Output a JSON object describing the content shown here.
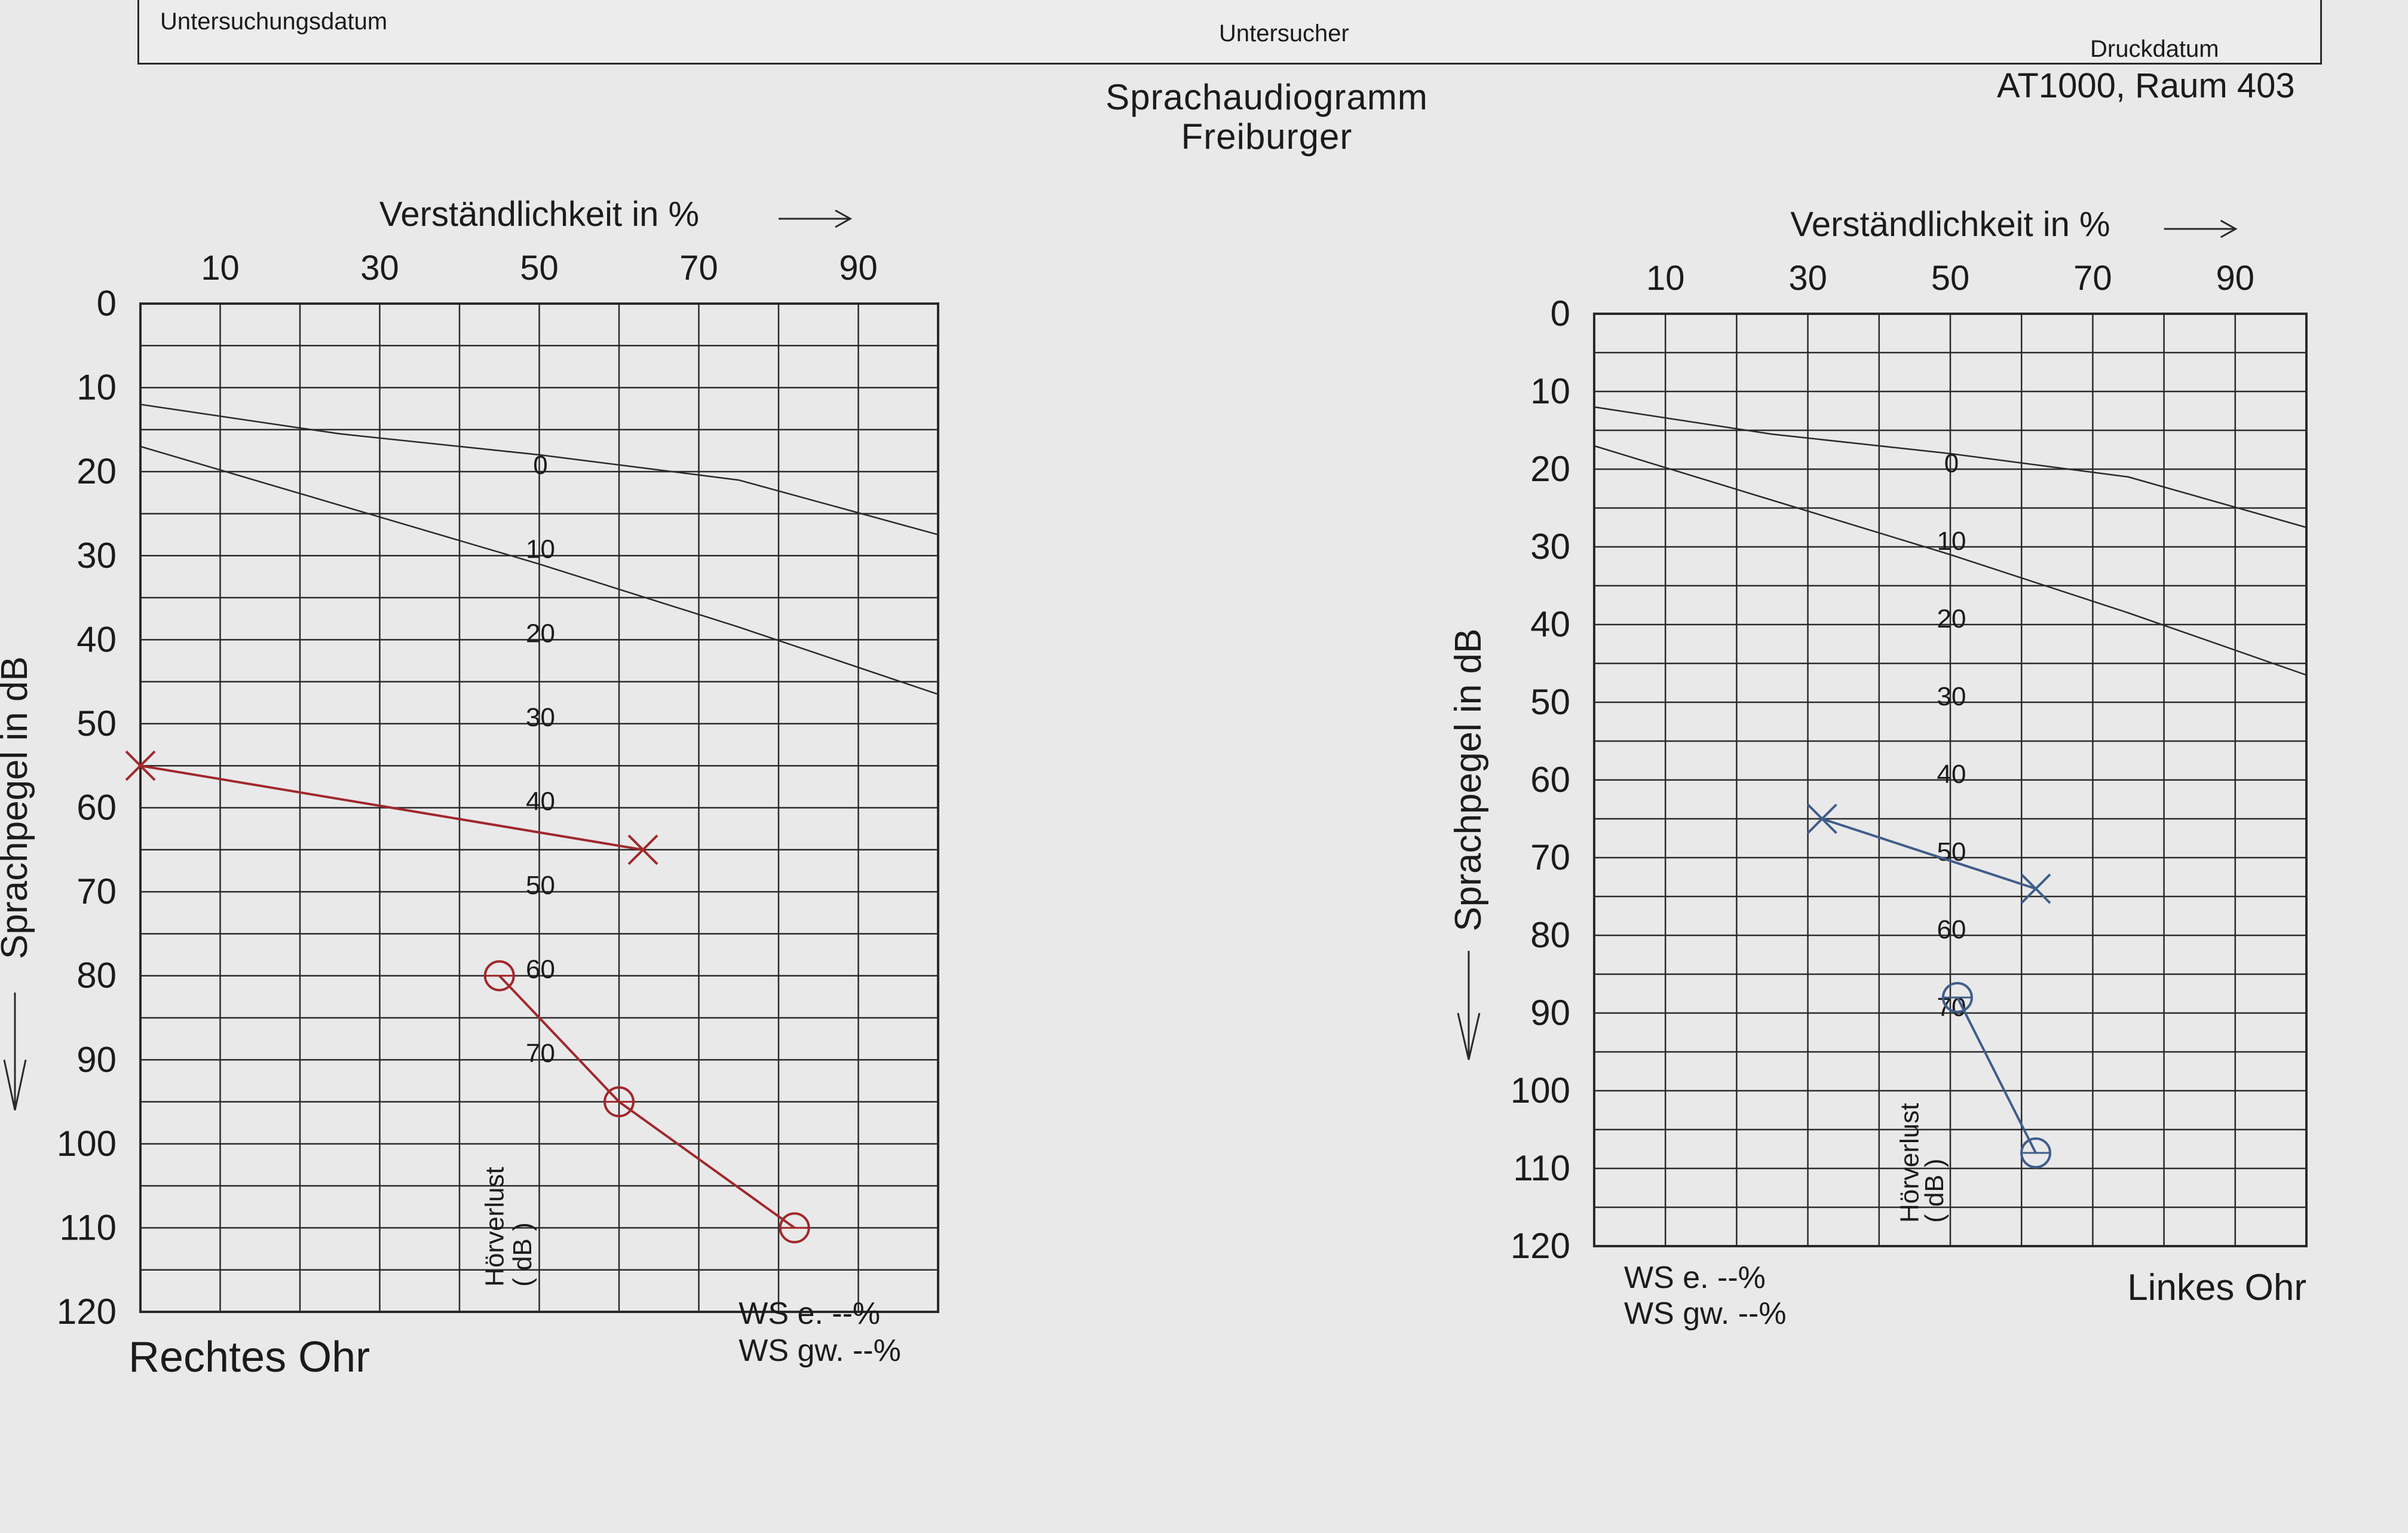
{
  "header": {
    "field_left_label": "Untersuchungsdatum",
    "field_mid_label": "Untersucher",
    "field_right_label": "Druckdatum",
    "device": "AT1000, Raum 403"
  },
  "title": {
    "line1": "Sprachaudiogramm",
    "line2": "Freiburger"
  },
  "colors": {
    "grid": "#2a2a2a",
    "right_ear": "#a1282b",
    "left_ear": "#3f5e8a"
  },
  "chart_data": [
    {
      "type": "line",
      "ear_label": "Rechtes Ohr",
      "xlabel": "Verständlichkeit in %",
      "ylabel": "Sprachpegel in dB",
      "x_ticks": [
        "10",
        "30",
        "50",
        "70",
        "90"
      ],
      "y_ticks": [
        "0",
        "10",
        "20",
        "30",
        "40",
        "50",
        "60",
        "70",
        "80",
        "90",
        "100",
        "110",
        "120"
      ],
      "xlim": [
        0,
        100
      ],
      "ylim": [
        0,
        120
      ],
      "y_inverted": true,
      "hearing_loss_label": "Hörverlust",
      "hearing_loss_unit": "( dB )",
      "hearing_loss_ticks": [
        "0",
        "10",
        "20",
        "30",
        "40",
        "50",
        "60",
        "70"
      ],
      "ws_e_label": "WS e.",
      "ws_e_value": "--%",
      "ws_gw_label": "WS gw.",
      "ws_gw_value": "--%",
      "series": [
        {
          "marker": "x",
          "points": [
            [
              0,
              55
            ],
            [
              63,
              65
            ]
          ]
        },
        {
          "marker": "o",
          "points": [
            [
              45,
              80
            ],
            [
              60,
              95
            ],
            [
              82,
              110
            ]
          ]
        }
      ]
    },
    {
      "type": "line",
      "ear_label": "Linkes Ohr",
      "xlabel": "Verständlichkeit in %",
      "ylabel": "Sprachpegel in dB",
      "x_ticks": [
        "10",
        "30",
        "50",
        "70",
        "90"
      ],
      "y_ticks": [
        "0",
        "10",
        "20",
        "30",
        "40",
        "50",
        "60",
        "70",
        "80",
        "90",
        "100",
        "110",
        "120"
      ],
      "xlim": [
        0,
        100
      ],
      "ylim": [
        0,
        120
      ],
      "y_inverted": true,
      "hearing_loss_label": "Hörverlust",
      "hearing_loss_unit": "( dB )",
      "hearing_loss_ticks": [
        "0",
        "10",
        "20",
        "30",
        "40",
        "50",
        "60",
        "70"
      ],
      "ws_e_label": "WS e.",
      "ws_e_value": "--%",
      "ws_gw_label": "WS gw.",
      "ws_gw_value": "--%",
      "series": [
        {
          "marker": "x",
          "points": [
            [
              32,
              65
            ],
            [
              62,
              74
            ]
          ]
        },
        {
          "marker": "o",
          "points": [
            [
              51,
              88
            ],
            [
              62,
              108
            ]
          ]
        }
      ]
    }
  ]
}
